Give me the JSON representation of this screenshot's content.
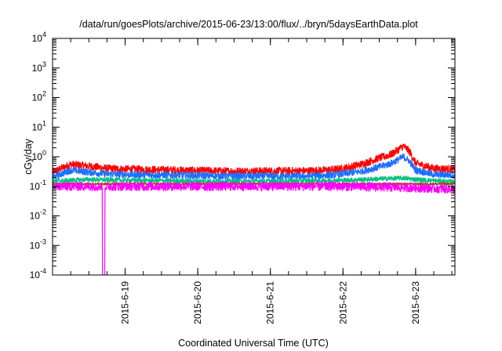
{
  "chart_data": {
    "type": "line",
    "title": "/data/run/goesPlots/archive/2015-06-23/13:00/flux/../bryn/5daysEarthData.plot",
    "xlabel": "Coordinated Universal Time (UTC)",
    "ylabel": "cGy/day",
    "yscale": "log",
    "ylim": [
      0.0001,
      10000
    ],
    "xlim": [
      "2015-06-18 00:00",
      "2015-06-23 13:00"
    ],
    "grid": false,
    "legend": "none",
    "x_ticks": [
      "2015-6-19",
      "2015-6-20",
      "2015-6-21",
      "2015-6-22",
      "2015-6-23"
    ],
    "y_ticks": [
      {
        "value": 0.0001,
        "base": "10",
        "exp": "-4"
      },
      {
        "value": 0.001,
        "base": "10",
        "exp": "-3"
      },
      {
        "value": 0.01,
        "base": "10",
        "exp": "-2"
      },
      {
        "value": 0.1,
        "base": "10",
        "exp": "-1"
      },
      {
        "value": 1,
        "base": "10",
        "exp": "0"
      },
      {
        "value": 10,
        "base": "10",
        "exp": "1"
      },
      {
        "value": 100,
        "base": "10",
        "exp": "2"
      },
      {
        "value": 1000,
        "base": "10",
        "exp": "3"
      },
      {
        "value": 10000,
        "base": "10",
        "exp": "4"
      }
    ],
    "series": [
      {
        "color": "#ff0000",
        "noise": 0.1,
        "points": [
          [
            "2015-06-18 00:00",
            0.3
          ],
          [
            "2015-06-18 06:00",
            0.55
          ],
          [
            "2015-06-18 12:00",
            0.48
          ],
          [
            "2015-06-18 18:00",
            0.4
          ],
          [
            "2015-06-19 00:00",
            0.38
          ],
          [
            "2015-06-19 12:00",
            0.36
          ],
          [
            "2015-06-20 00:00",
            0.34
          ],
          [
            "2015-06-20 12:00",
            0.32
          ],
          [
            "2015-06-21 00:00",
            0.33
          ],
          [
            "2015-06-21 12:00",
            0.33
          ],
          [
            "2015-06-21 20:00",
            0.36
          ],
          [
            "2015-06-22 00:00",
            0.4
          ],
          [
            "2015-06-22 06:00",
            0.55
          ],
          [
            "2015-06-22 12:00",
            0.9
          ],
          [
            "2015-06-22 16:00",
            1.2
          ],
          [
            "2015-06-22 20:00",
            2.3
          ],
          [
            "2015-06-22 22:00",
            1.5
          ],
          [
            "2015-06-23 00:00",
            0.6
          ],
          [
            "2015-06-23 06:00",
            0.4
          ],
          [
            "2015-06-23 13:00",
            0.38
          ]
        ]
      },
      {
        "color": "#1e6fff",
        "noise": 0.09,
        "points": [
          [
            "2015-06-18 00:00",
            0.2
          ],
          [
            "2015-06-18 06:00",
            0.35
          ],
          [
            "2015-06-18 12:00",
            0.3
          ],
          [
            "2015-06-18 18:00",
            0.26
          ],
          [
            "2015-06-19 00:00",
            0.25
          ],
          [
            "2015-06-19 12:00",
            0.24
          ],
          [
            "2015-06-20 00:00",
            0.23
          ],
          [
            "2015-06-20 12:00",
            0.22
          ],
          [
            "2015-06-21 00:00",
            0.22
          ],
          [
            "2015-06-21 12:00",
            0.22
          ],
          [
            "2015-06-21 20:00",
            0.24
          ],
          [
            "2015-06-22 00:00",
            0.26
          ],
          [
            "2015-06-22 06:00",
            0.32
          ],
          [
            "2015-06-22 12:00",
            0.45
          ],
          [
            "2015-06-22 16:00",
            0.6
          ],
          [
            "2015-06-22 20:00",
            1.0
          ],
          [
            "2015-06-22 22:00",
            0.7
          ],
          [
            "2015-06-23 00:00",
            0.35
          ],
          [
            "2015-06-23 06:00",
            0.25
          ],
          [
            "2015-06-23 13:00",
            0.24
          ]
        ]
      },
      {
        "color": "#00c080",
        "noise": 0.06,
        "points": [
          [
            "2015-06-18 00:00",
            0.15
          ],
          [
            "2015-06-18 12:00",
            0.17
          ],
          [
            "2015-06-19 00:00",
            0.16
          ],
          [
            "2015-06-20 00:00",
            0.15
          ],
          [
            "2015-06-21 00:00",
            0.15
          ],
          [
            "2015-06-22 00:00",
            0.16
          ],
          [
            "2015-06-22 20:00",
            0.19
          ],
          [
            "2015-06-23 00:00",
            0.17
          ],
          [
            "2015-06-23 13:00",
            0.14
          ]
        ]
      },
      {
        "color": "#a05000",
        "noise": 0.03,
        "points": [
          [
            "2015-06-18 00:00",
            0.12
          ],
          [
            "2015-06-19 00:00",
            0.12
          ],
          [
            "2015-06-20 00:00",
            0.12
          ],
          [
            "2015-06-21 00:00",
            0.12
          ],
          [
            "2015-06-22 00:00",
            0.12
          ],
          [
            "2015-06-23 00:00",
            0.12
          ],
          [
            "2015-06-23 13:00",
            0.12
          ]
        ]
      },
      {
        "color": "#ff00ff",
        "noise": 0.12,
        "dropout": [
          "2015-06-18 16:30",
          "2015-06-18 17:15"
        ],
        "dropout_min": 0.0001,
        "points": [
          [
            "2015-06-18 00:00",
            0.1
          ],
          [
            "2015-06-19 00:00",
            0.1
          ],
          [
            "2015-06-20 00:00",
            0.1
          ],
          [
            "2015-06-21 00:00",
            0.1
          ],
          [
            "2015-06-22 00:00",
            0.1
          ],
          [
            "2015-06-23 00:00",
            0.09
          ],
          [
            "2015-06-23 13:00",
            0.08
          ]
        ]
      }
    ]
  }
}
